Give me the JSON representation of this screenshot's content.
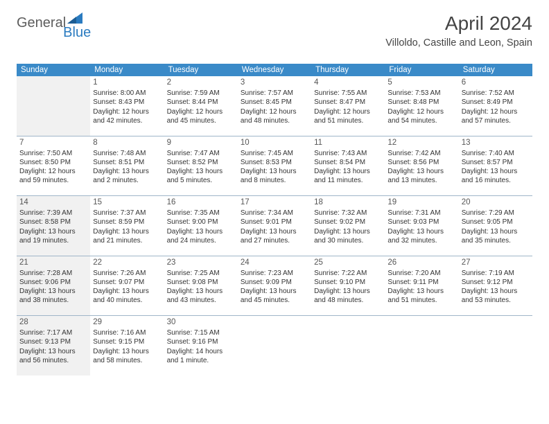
{
  "brand": {
    "part1": "General",
    "part2": "Blue",
    "tri_color": "#2a7bc0"
  },
  "header": {
    "monthyear": "April 2024",
    "location": "Villoldo, Castille and Leon, Spain"
  },
  "style": {
    "header_bg": "#3a8ac8",
    "header_fg": "#ffffff",
    "sep_color": "#9fb5c8",
    "shade_bg": "#f1f1f1",
    "body_bg": "#ffffff",
    "text_color": "#333333",
    "daynum_color": "#555555",
    "header_fontsize": 11.5,
    "cell_fontsize": 10,
    "title_fontsize": 28,
    "location_fontsize": 14.5
  },
  "day_names": [
    "Sunday",
    "Monday",
    "Tuesday",
    "Wednesday",
    "Thursday",
    "Friday",
    "Saturday"
  ],
  "weeks": [
    [
      {
        "blank": true,
        "shaded": true
      },
      {
        "n": "1",
        "sr": "8:00 AM",
        "ss": "8:43 PM",
        "dl": "12 hours and 42 minutes."
      },
      {
        "n": "2",
        "sr": "7:59 AM",
        "ss": "8:44 PM",
        "dl": "12 hours and 45 minutes."
      },
      {
        "n": "3",
        "sr": "7:57 AM",
        "ss": "8:45 PM",
        "dl": "12 hours and 48 minutes."
      },
      {
        "n": "4",
        "sr": "7:55 AM",
        "ss": "8:47 PM",
        "dl": "12 hours and 51 minutes."
      },
      {
        "n": "5",
        "sr": "7:53 AM",
        "ss": "8:48 PM",
        "dl": "12 hours and 54 minutes."
      },
      {
        "n": "6",
        "sr": "7:52 AM",
        "ss": "8:49 PM",
        "dl": "12 hours and 57 minutes."
      }
    ],
    [
      {
        "n": "7",
        "sr": "7:50 AM",
        "ss": "8:50 PM",
        "dl": "12 hours and 59 minutes."
      },
      {
        "n": "8",
        "sr": "7:48 AM",
        "ss": "8:51 PM",
        "dl": "13 hours and 2 minutes."
      },
      {
        "n": "9",
        "sr": "7:47 AM",
        "ss": "8:52 PM",
        "dl": "13 hours and 5 minutes."
      },
      {
        "n": "10",
        "sr": "7:45 AM",
        "ss": "8:53 PM",
        "dl": "13 hours and 8 minutes."
      },
      {
        "n": "11",
        "sr": "7:43 AM",
        "ss": "8:54 PM",
        "dl": "13 hours and 11 minutes."
      },
      {
        "n": "12",
        "sr": "7:42 AM",
        "ss": "8:56 PM",
        "dl": "13 hours and 13 minutes."
      },
      {
        "n": "13",
        "sr": "7:40 AM",
        "ss": "8:57 PM",
        "dl": "13 hours and 16 minutes."
      }
    ],
    [
      {
        "n": "14",
        "sr": "7:39 AM",
        "ss": "8:58 PM",
        "dl": "13 hours and 19 minutes.",
        "shaded": true
      },
      {
        "n": "15",
        "sr": "7:37 AM",
        "ss": "8:59 PM",
        "dl": "13 hours and 21 minutes."
      },
      {
        "n": "16",
        "sr": "7:35 AM",
        "ss": "9:00 PM",
        "dl": "13 hours and 24 minutes."
      },
      {
        "n": "17",
        "sr": "7:34 AM",
        "ss": "9:01 PM",
        "dl": "13 hours and 27 minutes."
      },
      {
        "n": "18",
        "sr": "7:32 AM",
        "ss": "9:02 PM",
        "dl": "13 hours and 30 minutes."
      },
      {
        "n": "19",
        "sr": "7:31 AM",
        "ss": "9:03 PM",
        "dl": "13 hours and 32 minutes."
      },
      {
        "n": "20",
        "sr": "7:29 AM",
        "ss": "9:05 PM",
        "dl": "13 hours and 35 minutes."
      }
    ],
    [
      {
        "n": "21",
        "sr": "7:28 AM",
        "ss": "9:06 PM",
        "dl": "13 hours and 38 minutes.",
        "shaded": true
      },
      {
        "n": "22",
        "sr": "7:26 AM",
        "ss": "9:07 PM",
        "dl": "13 hours and 40 minutes."
      },
      {
        "n": "23",
        "sr": "7:25 AM",
        "ss": "9:08 PM",
        "dl": "13 hours and 43 minutes."
      },
      {
        "n": "24",
        "sr": "7:23 AM",
        "ss": "9:09 PM",
        "dl": "13 hours and 45 minutes."
      },
      {
        "n": "25",
        "sr": "7:22 AM",
        "ss": "9:10 PM",
        "dl": "13 hours and 48 minutes."
      },
      {
        "n": "26",
        "sr": "7:20 AM",
        "ss": "9:11 PM",
        "dl": "13 hours and 51 minutes."
      },
      {
        "n": "27",
        "sr": "7:19 AM",
        "ss": "9:12 PM",
        "dl": "13 hours and 53 minutes."
      }
    ],
    [
      {
        "n": "28",
        "sr": "7:17 AM",
        "ss": "9:13 PM",
        "dl": "13 hours and 56 minutes.",
        "shaded": true
      },
      {
        "n": "29",
        "sr": "7:16 AM",
        "ss": "9:15 PM",
        "dl": "13 hours and 58 minutes."
      },
      {
        "n": "30",
        "sr": "7:15 AM",
        "ss": "9:16 PM",
        "dl": "14 hours and 1 minute."
      },
      {
        "blank": true
      },
      {
        "blank": true
      },
      {
        "blank": true
      },
      {
        "blank": true
      }
    ]
  ],
  "labels": {
    "sunrise": "Sunrise: ",
    "sunset": "Sunset: ",
    "daylight": "Daylight: "
  }
}
